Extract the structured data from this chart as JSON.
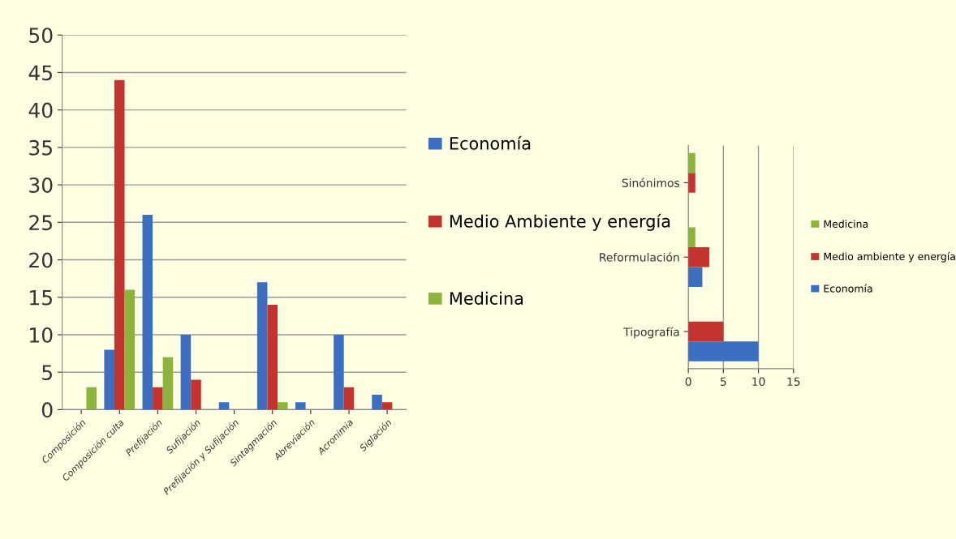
{
  "chart_data": [
    {
      "type": "bar",
      "categories": [
        "Composición",
        "Composición culta",
        "Prefijación",
        "Sufijación",
        "Prefijación y Sufijación",
        "Sintagmación",
        "Abreviación",
        "Acronimia",
        "Siglación"
      ],
      "series": [
        {
          "name": "Economía",
          "color": "#3c6fc2",
          "values": [
            0,
            8,
            26,
            10,
            1,
            17,
            1,
            10,
            2
          ]
        },
        {
          "name": "Medio Ambiente y energía",
          "color": "#c4342f",
          "values": [
            0,
            44,
            3,
            4,
            0,
            14,
            0,
            3,
            1
          ]
        },
        {
          "name": "Medicina",
          "color": "#8cb43c",
          "values": [
            3,
            16,
            7,
            0,
            0,
            1,
            0,
            0,
            0
          ]
        }
      ],
      "ylim": [
        0,
        50
      ],
      "yticks": [
        0,
        5,
        10,
        15,
        20,
        25,
        30,
        35,
        40,
        45,
        50
      ],
      "grid": "y",
      "legend": "right"
    },
    {
      "type": "bar",
      "orientation": "horizontal",
      "categories": [
        "Sinónimos",
        "Reformulación",
        "Tipografía"
      ],
      "series": [
        {
          "name": "Economía",
          "color": "#3c6fc2",
          "values": [
            0,
            2,
            10
          ]
        },
        {
          "name": "Medio ambiente y energía",
          "color": "#c4342f",
          "values": [
            1,
            3,
            5
          ]
        },
        {
          "name": "Medicina",
          "color": "#8cb43c",
          "values": [
            1,
            1,
            0
          ]
        }
      ],
      "xlim": [
        0,
        15
      ],
      "xticks": [
        0,
        5,
        10,
        15
      ],
      "grid": "x",
      "legend": "right"
    }
  ]
}
